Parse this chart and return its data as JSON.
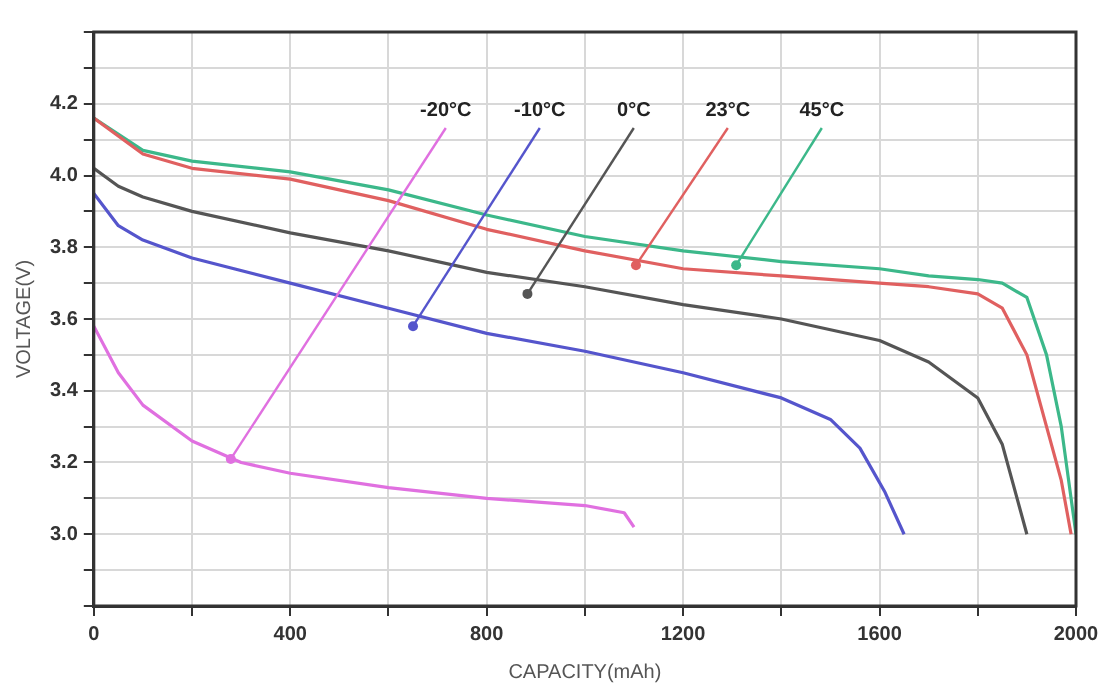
{
  "chart_data": {
    "type": "line",
    "xlabel": "CAPACITY(mAh)",
    "ylabel": "VOLTAGE(V)",
    "xlim": [
      0,
      2000
    ],
    "xticks": [
      0,
      {
        "value": 200,
        "label": null
      },
      400,
      {
        "value": 600,
        "label": null
      },
      800,
      {
        "value": 1000,
        "label": null
      },
      1200,
      {
        "value": 1400,
        "label": null
      },
      1600,
      {
        "value": 1800,
        "label": null
      },
      2000
    ],
    "ylim": [
      2.8,
      4.4
    ],
    "yticks": [
      {
        "value": 2.8,
        "label": null
      },
      {
        "value": 2.9,
        "label": null
      },
      {
        "value": 3,
        "label": "3.0"
      },
      {
        "value": 3.1,
        "label": null
      },
      3.2,
      {
        "value": 3.3,
        "label": null
      },
      3.4,
      {
        "value": 3.5,
        "label": null
      },
      3.6,
      {
        "value": 3.7,
        "label": null
      },
      3.8,
      {
        "value": 3.9,
        "label": null
      },
      {
        "value": 4,
        "label": "4.0"
      },
      {
        "value": 4.1,
        "label": null
      },
      4.2,
      {
        "value": 4.3,
        "label": null
      },
      {
        "value": 4.4,
        "label": null
      }
    ],
    "grid": true,
    "legend": false,
    "marker": "none",
    "line_style": "solid",
    "series": [
      {
        "color": "#e070e0",
        "x": [
          0,
          50,
          100,
          200,
          300,
          400,
          600,
          800,
          1000,
          1080,
          1100
        ],
        "values": [
          3.58,
          3.45,
          3.36,
          3.26,
          3.2,
          3.17,
          3.13,
          3.1,
          3.08,
          3.06,
          3.02
        ]
      },
      {
        "color": "#5555cc",
        "x": [
          0,
          50,
          100,
          200,
          400,
          600,
          800,
          1000,
          1200,
          1400,
          1500,
          1560,
          1610,
          1650
        ],
        "values": [
          3.95,
          3.86,
          3.82,
          3.77,
          3.7,
          3.63,
          3.56,
          3.51,
          3.45,
          3.38,
          3.32,
          3.24,
          3.12,
          3.0
        ]
      },
      {
        "color": "#555555",
        "x": [
          0,
          50,
          100,
          200,
          400,
          600,
          800,
          1000,
          1200,
          1400,
          1600,
          1700,
          1800,
          1850,
          1880,
          1900
        ],
        "values": [
          4.02,
          3.97,
          3.94,
          3.9,
          3.84,
          3.79,
          3.73,
          3.69,
          3.64,
          3.6,
          3.54,
          3.48,
          3.38,
          3.25,
          3.1,
          3.0
        ]
      },
      {
        "color": "#e06060",
        "x": [
          0,
          100,
          200,
          400,
          600,
          800,
          1000,
          1200,
          1400,
          1600,
          1700,
          1800,
          1850,
          1900,
          1940,
          1970,
          1990
        ],
        "values": [
          4.16,
          4.06,
          4.02,
          3.99,
          3.93,
          3.85,
          3.79,
          3.74,
          3.72,
          3.7,
          3.69,
          3.67,
          3.63,
          3.5,
          3.3,
          3.15,
          3.0
        ]
      },
      {
        "color": "#3cb88a",
        "x": [
          0,
          100,
          200,
          400,
          600,
          800,
          1000,
          1200,
          1400,
          1600,
          1700,
          1800,
          1850,
          1900,
          1940,
          1970,
          1990,
          2000
        ],
        "values": [
          4.16,
          4.07,
          4.04,
          4.01,
          3.96,
          3.89,
          3.83,
          3.79,
          3.76,
          3.74,
          3.72,
          3.71,
          3.7,
          3.66,
          3.5,
          3.3,
          3.1,
          3.0
        ]
      }
    ],
    "annotations": [
      {
        "text": "-20°C",
        "x": 279,
        "y": 3.21
      },
      {
        "text": "-10°C",
        "x": 650,
        "y": 3.58
      },
      {
        "text": "0°C",
        "x": 883,
        "y": 3.67
      },
      {
        "text": "23°C",
        "x": 1104,
        "y": 3.75
      },
      {
        "text": "45°C",
        "x": 1308,
        "y": 3.75
      }
    ]
  }
}
